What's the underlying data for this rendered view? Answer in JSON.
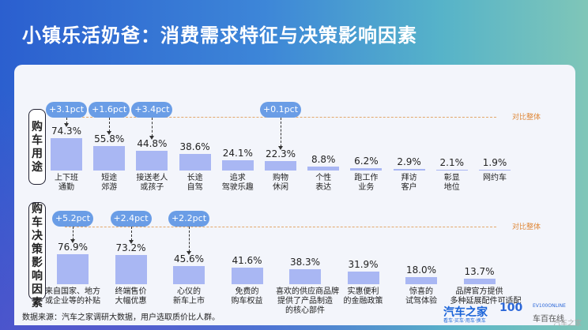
{
  "title": "小镇乐活奶爸：消费需求特征与决策影响因素",
  "chart_data": [
    {
      "type": "bar",
      "section_label": "购车用途",
      "compare_label": "对比整体",
      "categories": [
        "上下班 通勤",
        "短途 郊游",
        "接送老人 或孩子",
        "长途 自驾",
        "追求 驾驶乐趣",
        "购物 休闲",
        "个性 表达",
        "跑工作 业务",
        "拜访 客户",
        "彰显 地位",
        "网约车"
      ],
      "values": [
        74.3,
        55.8,
        44.8,
        38.6,
        24.1,
        22.3,
        8.8,
        6.2,
        2.9,
        2.1,
        1.9
      ],
      "value_labels": [
        "74.3%",
        "55.8%",
        "44.8%",
        "38.6%",
        "24.1%",
        "22.3%",
        "8.8%",
        "6.2%",
        "2.9%",
        "2.1%",
        "1.9%"
      ],
      "ylim": [
        0,
        100
      ],
      "annotations": [
        {
          "index": 0,
          "text": "+3.1pct"
        },
        {
          "index": 1,
          "text": "+1.6pct"
        },
        {
          "index": 2,
          "text": "+3.4pct"
        },
        {
          "index": 5,
          "text": "+0.1pct"
        }
      ]
    },
    {
      "type": "bar",
      "section_label": "购车决策影响因素",
      "compare_label": "对比整体",
      "categories": [
        "来自国家、地方 或企业等的补贴",
        "终端售价 大幅优惠",
        "心仪的 新车上市",
        "免费的 购车权益",
        "喜欢的供应商品牌 提供了产品制造 的核心部件",
        "实惠便利 的金融政策",
        "惊喜的 试驾体验",
        "品牌官方提供 多种延展配件可适配"
      ],
      "values": [
        76.9,
        73.2,
        45.6,
        41.6,
        38.3,
        31.9,
        18.0,
        13.7
      ],
      "value_labels": [
        "76.9%",
        "73.2%",
        "45.6%",
        "41.6%",
        "38.3%",
        "31.9%",
        "18.0%",
        "13.7%"
      ],
      "ylim": [
        0,
        100
      ],
      "annotations": [
        {
          "index": 0,
          "text": "+5.2pct"
        },
        {
          "index": 1,
          "text": "+2.4pct"
        },
        {
          "index": 2,
          "text": "+2.2pct"
        }
      ]
    }
  ],
  "source": "数据来源：汽车之家调研大数据，用户选取质价比人群。",
  "logos": {
    "autohome": "汽车之家",
    "autohome_sub": "看车·买车·用车·换车",
    "ev100_mark": "100",
    "ev100_en": "EV100ONLINE",
    "ev100_cn": "车百在线"
  },
  "watermark": "汽车之家"
}
